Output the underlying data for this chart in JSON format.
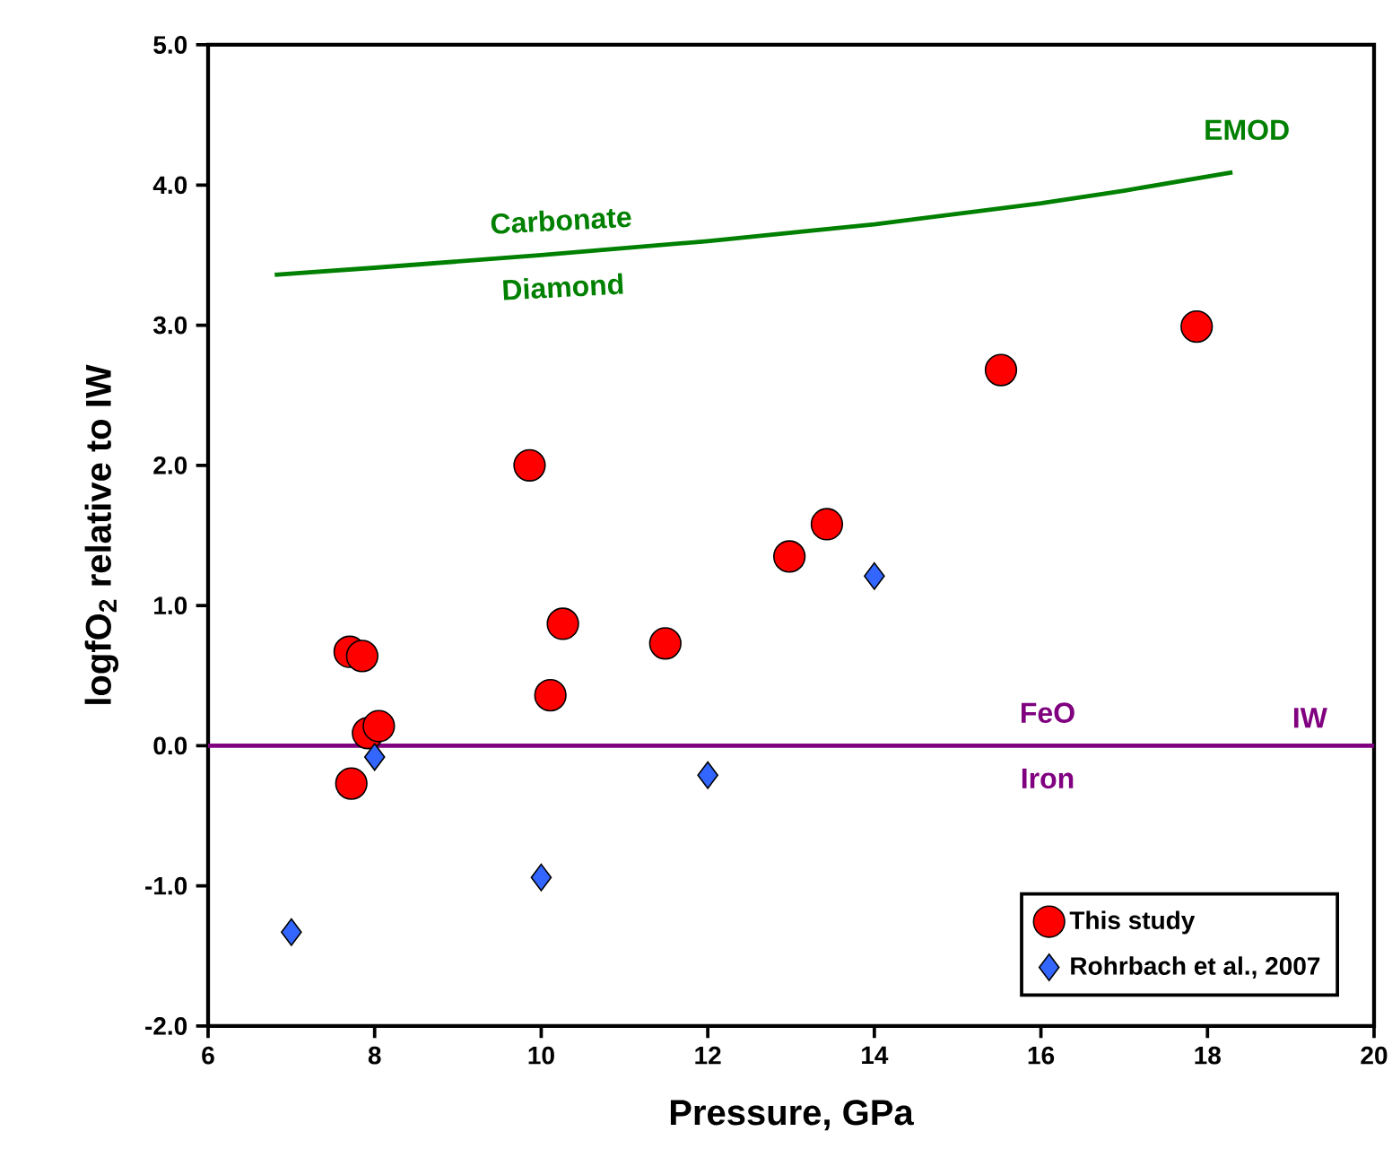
{
  "chart_data": {
    "type": "scatter",
    "xlabel": "Pressure, GPa",
    "ylabel": "logfO$_{2}$ relative to IW",
    "xlim": [
      6,
      20
    ],
    "xticks": [
      6,
      8,
      10,
      12,
      14,
      16,
      18,
      20
    ],
    "ylim": [
      -2,
      5
    ],
    "yticks": [
      {
        "value": -2,
        "label": "-2.0"
      },
      {
        "value": -1,
        "label": "-1.0"
      },
      {
        "value": 0,
        "label": "0.0"
      },
      {
        "value": 1,
        "label": "1.0"
      },
      {
        "value": 2,
        "label": "2.0"
      },
      {
        "value": 3,
        "label": "3.0"
      },
      {
        "value": 4,
        "label": "4.0"
      },
      {
        "value": 5,
        "label": "5.0"
      }
    ],
    "series": [
      {
        "name": "This study",
        "color": "#ff0000",
        "marker": "circle",
        "x": [
          7.7,
          7.85,
          7.92,
          8.05,
          7.72,
          9.86,
          10.11,
          10.26,
          11.49,
          12.98,
          13.43,
          15.52,
          17.87
        ],
        "values": [
          0.67,
          0.64,
          0.09,
          0.14,
          -0.27,
          2.0,
          0.36,
          0.87,
          0.73,
          1.35,
          1.58,
          2.68,
          2.99
        ]
      },
      {
        "name": "Rohrbach et al., 2007",
        "color": "#3366ff",
        "marker": "diamond",
        "x": [
          7,
          8,
          10,
          12,
          14
        ],
        "values": [
          -1.33,
          -0.08,
          -0.94,
          -0.21,
          1.21
        ]
      },
      {
        "type": "line",
        "name": "EMOD",
        "color": "#008000",
        "marker": "none",
        "x": [
          6.8,
          8,
          10,
          12,
          14,
          16,
          17,
          18.3
        ],
        "values": [
          3.36,
          3.41,
          3.5,
          3.6,
          3.72,
          3.87,
          3.96,
          4.09
        ]
      }
    ],
    "ref_lines": [
      {
        "axis": "y",
        "value": 0,
        "label": "IW",
        "color": "#800080"
      }
    ],
    "annotations": [
      "Carbonate",
      "Diamond",
      "FeO",
      "Iron"
    ],
    "grid": false,
    "legend": "bottom right"
  }
}
